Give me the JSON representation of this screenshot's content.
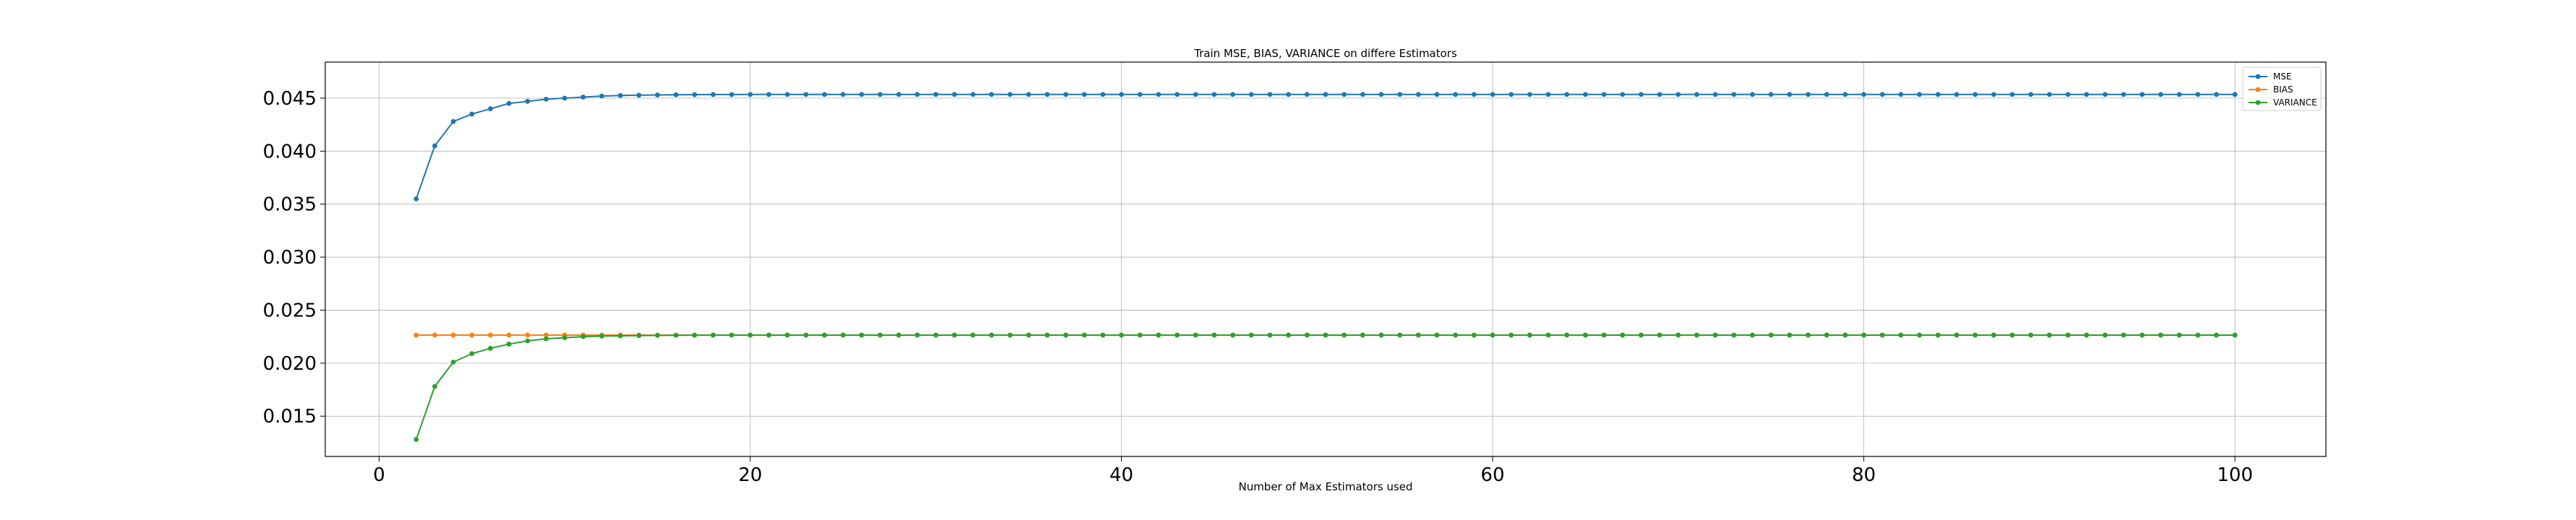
{
  "chart_data": {
    "type": "line",
    "title": "Train MSE, BIAS, VARIANCE on differe Estimators",
    "xlabel": "Number of Max Estimators used",
    "ylabel": "",
    "xlim": [
      -2.9,
      104.9
    ],
    "ylim": [
      0.0112,
      0.0484
    ],
    "xticks": [
      0,
      20,
      40,
      60,
      80,
      100
    ],
    "xtick_labels": [
      "0",
      "20",
      "40",
      "60",
      "80",
      "100"
    ],
    "yticks": [
      0.015,
      0.02,
      0.025,
      0.03,
      0.035,
      0.04,
      0.045
    ],
    "ytick_labels": [
      "0.015",
      "0.020",
      "0.025",
      "0.030",
      "0.035",
      "0.040",
      "0.045"
    ],
    "grid": true,
    "legend_position": "top-right",
    "x": [
      2,
      3,
      4,
      5,
      6,
      7,
      8,
      9,
      10,
      11,
      12,
      13,
      14,
      15,
      16,
      17,
      18,
      19,
      20,
      21,
      22,
      23,
      24,
      25,
      26,
      27,
      28,
      29,
      30,
      31,
      32,
      33,
      34,
      35,
      36,
      37,
      38,
      39,
      40,
      41,
      42,
      43,
      44,
      45,
      46,
      47,
      48,
      49,
      50,
      51,
      52,
      53,
      54,
      55,
      56,
      57,
      58,
      59,
      60,
      61,
      62,
      63,
      64,
      65,
      66,
      67,
      68,
      69,
      70,
      71,
      72,
      73,
      74,
      75,
      76,
      77,
      78,
      79,
      80,
      81,
      82,
      83,
      84,
      85,
      86,
      87,
      88,
      89,
      90,
      91,
      92,
      93,
      94,
      95,
      96,
      97,
      98,
      99,
      100
    ],
    "series": [
      {
        "name": "MSE",
        "color": "#1f77b4",
        "values": [
          0.0355,
          0.0405,
          0.0428,
          0.0435,
          0.044,
          0.0445,
          0.0447,
          0.0449,
          0.045,
          0.0451,
          0.0452,
          0.04525,
          0.04528,
          0.0453,
          0.04532,
          0.04533,
          0.04534,
          0.04534,
          0.04535,
          0.04535,
          0.04535,
          0.04535,
          0.04535,
          0.04535,
          0.04535,
          0.04535,
          0.04535,
          0.04535,
          0.04535,
          0.04535,
          0.04535,
          0.04535,
          0.04535,
          0.04535,
          0.04535,
          0.04535,
          0.04535,
          0.04535,
          0.04535,
          0.04535,
          0.04535,
          0.04535,
          0.04535,
          0.04535,
          0.04535,
          0.04535,
          0.04535,
          0.04535,
          0.04535,
          0.04535,
          0.04535,
          0.04535,
          0.04535,
          0.04535,
          0.04535,
          0.04535,
          0.04535,
          0.04535,
          0.04535,
          0.04535,
          0.04535,
          0.04535,
          0.04535,
          0.04535,
          0.04535,
          0.04535,
          0.04535,
          0.04535,
          0.04535,
          0.04535,
          0.04535,
          0.04535,
          0.04535,
          0.04535,
          0.04535,
          0.04535,
          0.04535,
          0.04535,
          0.04535,
          0.04535,
          0.04535,
          0.04535,
          0.04535,
          0.04535,
          0.04535,
          0.04535,
          0.04535,
          0.04535,
          0.04535,
          0.04535,
          0.04535,
          0.04535,
          0.04535,
          0.04535,
          0.04535,
          0.04535,
          0.04535,
          0.04535,
          0.04535
        ]
      },
      {
        "name": "BIAS",
        "color": "#ff7f0e",
        "values": [
          0.02265,
          0.02265,
          0.02265,
          0.02265,
          0.02265,
          0.02265,
          0.02265,
          0.02265,
          0.02265,
          0.02265,
          0.02265,
          0.02265,
          0.02265,
          0.02265,
          0.02265,
          0.02265,
          0.02265,
          0.02265,
          0.02265,
          0.02265,
          0.02265,
          0.02265,
          0.02265,
          0.02265,
          0.02265,
          0.02265,
          0.02265,
          0.02265,
          0.02265,
          0.02265,
          0.02265,
          0.02265,
          0.02265,
          0.02265,
          0.02265,
          0.02265,
          0.02265,
          0.02265,
          0.02265,
          0.02265,
          0.02265,
          0.02265,
          0.02265,
          0.02265,
          0.02265,
          0.02265,
          0.02265,
          0.02265,
          0.02265,
          0.02265,
          0.02265,
          0.02265,
          0.02265,
          0.02265,
          0.02265,
          0.02265,
          0.02265,
          0.02265,
          0.02265,
          0.02265,
          0.02265,
          0.02265,
          0.02265,
          0.02265,
          0.02265,
          0.02265,
          0.02265,
          0.02265,
          0.02265,
          0.02265,
          0.02265,
          0.02265,
          0.02265,
          0.02265,
          0.02265,
          0.02265,
          0.02265,
          0.02265,
          0.02265,
          0.02265,
          0.02265,
          0.02265,
          0.02265,
          0.02265,
          0.02265,
          0.02265,
          0.02265,
          0.02265,
          0.02265,
          0.02265,
          0.02265,
          0.02265,
          0.02265,
          0.02265,
          0.02265,
          0.02265,
          0.02265,
          0.02265,
          0.02265
        ]
      },
      {
        "name": "VARIANCE",
        "color": "#2ca02c",
        "values": [
          0.0128,
          0.0178,
          0.0201,
          0.0209,
          0.0214,
          0.0218,
          0.0221,
          0.0223,
          0.0224,
          0.0225,
          0.02255,
          0.02258,
          0.0226,
          0.02262,
          0.02263,
          0.02264,
          0.02265,
          0.02265,
          0.02265,
          0.02265,
          0.02265,
          0.02265,
          0.02265,
          0.02265,
          0.02265,
          0.02265,
          0.02265,
          0.02265,
          0.02265,
          0.02265,
          0.02265,
          0.02265,
          0.02265,
          0.02265,
          0.02265,
          0.02265,
          0.02265,
          0.02265,
          0.02265,
          0.02265,
          0.02265,
          0.02265,
          0.02265,
          0.02265,
          0.02265,
          0.02265,
          0.02265,
          0.02265,
          0.02265,
          0.02265,
          0.02265,
          0.02265,
          0.02265,
          0.02265,
          0.02265,
          0.02265,
          0.02265,
          0.02265,
          0.02265,
          0.02265,
          0.02265,
          0.02265,
          0.02265,
          0.02265,
          0.02265,
          0.02265,
          0.02265,
          0.02265,
          0.02265,
          0.02265,
          0.02265,
          0.02265,
          0.02265,
          0.02265,
          0.02265,
          0.02265,
          0.02265,
          0.02265,
          0.02265,
          0.02265,
          0.02265,
          0.02265,
          0.02265,
          0.02265,
          0.02265,
          0.02265,
          0.02265,
          0.02265,
          0.02265,
          0.02265,
          0.02265,
          0.02265,
          0.02265,
          0.02265,
          0.02265,
          0.02265,
          0.02265,
          0.02265,
          0.02265
        ]
      }
    ]
  }
}
